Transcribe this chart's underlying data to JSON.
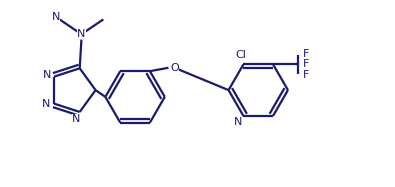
{
  "bg_color": "#ffffff",
  "line_color": "#1a1a6e",
  "line_width": 1.6,
  "figsize": [
    3.95,
    1.87
  ],
  "dpi": 100,
  "font_size": 8.0,
  "xlim": [
    0.0,
    1.0
  ],
  "ylim": [
    0.0,
    0.55
  ]
}
